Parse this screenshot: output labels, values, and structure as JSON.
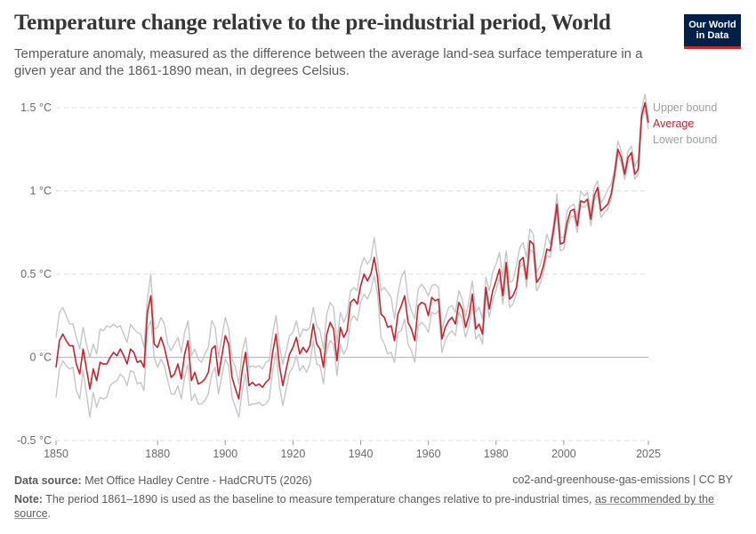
{
  "header": {
    "title": "Temperature change relative to the pre-industrial period, World",
    "subtitle": "Temperature anomaly, measured as the difference between the average land-sea surface temperature in a given year and the 1861-1890 mean, in degrees Celsius.",
    "logo_line1": "Our World",
    "logo_line2": "in Data"
  },
  "footer": {
    "source_label": "Data source:",
    "source_text": "Met Office Hadley Centre - HadCRUT5 (2026)",
    "slug": "co2-and-greenhouse-gas-emissions | CC BY",
    "note_label": "Note:",
    "note_text": "The period 1861–1890 is used as the baseline to measure temperature changes relative to pre-industrial times,",
    "note_link": "as recommended by the source",
    "note_end": "."
  },
  "colors": {
    "average": "#c8232d",
    "bounds": "#c6c6c6",
    "grid": "#dddddd",
    "zero": "#bdbdbd",
    "axis_text": "#6a6a6a"
  },
  "chart_data": {
    "type": "line",
    "xlabel": "",
    "ylabel": "",
    "xlim": [
      1850,
      2025
    ],
    "ylim": [
      -0.5,
      1.5
    ],
    "y_ticks": [
      {
        "v": -0.5,
        "label": "-0.5 °C"
      },
      {
        "v": 0,
        "label": "0 °C"
      },
      {
        "v": 0.5,
        "label": "0.5 °C"
      },
      {
        "v": 1,
        "label": "1 °C"
      },
      {
        "v": 1.5,
        "label": "1.5 °C"
      }
    ],
    "x_ticks": [
      {
        "v": 1850,
        "label": "1850"
      },
      {
        "v": 1880,
        "label": "1880"
      },
      {
        "v": 1900,
        "label": "1900"
      },
      {
        "v": 1920,
        "label": "1920"
      },
      {
        "v": 1940,
        "label": "1940"
      },
      {
        "v": 1960,
        "label": "1960"
      },
      {
        "v": 1980,
        "label": "1980"
      },
      {
        "v": 2000,
        "label": "2000"
      },
      {
        "v": 2025,
        "label": "2025"
      }
    ],
    "grid": true,
    "legend_placement": "right, inline at line ends",
    "series": [
      {
        "name": "Upper bound",
        "x": [
          1850,
          1851,
          1852,
          1853,
          1854,
          1855,
          1856,
          1857,
          1858,
          1859,
          1860,
          1861,
          1862,
          1863,
          1864,
          1865,
          1866,
          1867,
          1868,
          1869,
          1870,
          1871,
          1872,
          1873,
          1874,
          1875,
          1876,
          1877,
          1878,
          1879,
          1880,
          1881,
          1882,
          1883,
          1884,
          1885,
          1886,
          1887,
          1888,
          1889,
          1890,
          1891,
          1892,
          1893,
          1894,
          1895,
          1896,
          1897,
          1898,
          1899,
          1900,
          1901,
          1902,
          1903,
          1904,
          1905,
          1906,
          1907,
          1908,
          1909,
          1910,
          1911,
          1912,
          1913,
          1914,
          1915,
          1916,
          1917,
          1918,
          1919,
          1920,
          1921,
          1922,
          1923,
          1924,
          1925,
          1926,
          1927,
          1928,
          1929,
          1930,
          1931,
          1932,
          1933,
          1934,
          1935,
          1936,
          1937,
          1938,
          1939,
          1940,
          1941,
          1942,
          1943,
          1944,
          1945,
          1946,
          1947,
          1948,
          1949,
          1950,
          1951,
          1952,
          1953,
          1954,
          1955,
          1956,
          1957,
          1958,
          1959,
          1960,
          1961,
          1962,
          1963,
          1964,
          1965,
          1966,
          1967,
          1968,
          1969,
          1970,
          1971,
          1972,
          1973,
          1974,
          1975,
          1976,
          1977,
          1978,
          1979,
          1980,
          1981,
          1982,
          1983,
          1984,
          1985,
          1986,
          1987,
          1988,
          1989,
          1990,
          1991,
          1992,
          1993,
          1994,
          1995,
          1996,
          1997,
          1998,
          1999,
          2000,
          2001,
          2002,
          2003,
          2004,
          2005,
          2006,
          2007,
          2008,
          2009,
          2010,
          2011,
          2012,
          2013,
          2014,
          2015,
          2016,
          2017,
          2018,
          2019,
          2020,
          2021,
          2022,
          2023,
          2024,
          2025
        ],
        "values": [
          0.12,
          0.27,
          0.3,
          0.25,
          0.2,
          0.2,
          0.12,
          0.05,
          0.18,
          0.08,
          0.0,
          0.08,
          0.02,
          0.17,
          0.16,
          0.19,
          0.18,
          0.2,
          0.18,
          0.19,
          0.14,
          0.09,
          0.2,
          0.17,
          0.15,
          0.14,
          0.06,
          0.35,
          0.5,
          0.17,
          0.18,
          0.24,
          0.2,
          0.08,
          0.04,
          0.08,
          0.12,
          0.03,
          0.15,
          0.22,
          0.01,
          0.05,
          -0.01,
          -0.03,
          0.02,
          0.06,
          0.22,
          0.18,
          0.0,
          0.12,
          0.24,
          0.17,
          -0.01,
          -0.06,
          -0.16,
          0.03,
          0.12,
          -0.06,
          -0.05,
          -0.06,
          -0.05,
          -0.07,
          -0.03,
          -0.02,
          0.14,
          0.25,
          0.07,
          -0.04,
          0.04,
          0.13,
          0.15,
          0.22,
          0.12,
          0.17,
          0.16,
          0.18,
          0.3,
          0.19,
          0.16,
          0.05,
          0.26,
          0.33,
          0.3,
          0.09,
          0.27,
          0.21,
          0.26,
          0.4,
          0.42,
          0.4,
          0.54,
          0.6,
          0.56,
          0.59,
          0.72,
          0.57,
          0.4,
          0.42,
          0.39,
          0.36,
          0.23,
          0.38,
          0.48,
          0.52,
          0.35,
          0.28,
          0.23,
          0.41,
          0.44,
          0.41,
          0.37,
          0.43,
          0.44,
          0.42,
          0.16,
          0.24,
          0.3,
          0.31,
          0.27,
          0.4,
          0.35,
          0.24,
          0.34,
          0.46,
          0.27,
          0.3,
          0.23,
          0.48,
          0.4,
          0.51,
          0.56,
          0.63,
          0.48,
          0.64,
          0.45,
          0.46,
          0.55,
          0.66,
          0.69,
          0.6,
          0.77,
          0.74,
          0.51,
          0.55,
          0.62,
          0.74,
          0.68,
          0.8,
          0.98,
          0.72,
          0.72,
          0.88,
          0.91,
          0.92,
          0.84,
          1.0,
          0.97,
          0.99,
          0.87,
          1.02,
          1.06,
          0.93,
          0.96,
          1.01,
          1.04,
          1.13,
          1.3,
          1.24,
          1.12,
          1.24,
          1.27,
          1.15,
          1.19,
          1.49,
          1.58,
          1.44
        ]
      },
      {
        "name": "Average",
        "x": [
          1850,
          1851,
          1852,
          1853,
          1854,
          1855,
          1856,
          1857,
          1858,
          1859,
          1860,
          1861,
          1862,
          1863,
          1864,
          1865,
          1866,
          1867,
          1868,
          1869,
          1870,
          1871,
          1872,
          1873,
          1874,
          1875,
          1876,
          1877,
          1878,
          1879,
          1880,
          1881,
          1882,
          1883,
          1884,
          1885,
          1886,
          1887,
          1888,
          1889,
          1890,
          1891,
          1892,
          1893,
          1894,
          1895,
          1896,
          1897,
          1898,
          1899,
          1900,
          1901,
          1902,
          1903,
          1904,
          1905,
          1906,
          1907,
          1908,
          1909,
          1910,
          1911,
          1912,
          1913,
          1914,
          1915,
          1916,
          1917,
          1918,
          1919,
          1920,
          1921,
          1922,
          1923,
          1924,
          1925,
          1926,
          1927,
          1928,
          1929,
          1930,
          1931,
          1932,
          1933,
          1934,
          1935,
          1936,
          1937,
          1938,
          1939,
          1940,
          1941,
          1942,
          1943,
          1944,
          1945,
          1946,
          1947,
          1948,
          1949,
          1950,
          1951,
          1952,
          1953,
          1954,
          1955,
          1956,
          1957,
          1958,
          1959,
          1960,
          1961,
          1962,
          1963,
          1964,
          1965,
          1966,
          1967,
          1968,
          1969,
          1970,
          1971,
          1972,
          1973,
          1974,
          1975,
          1976,
          1977,
          1978,
          1979,
          1980,
          1981,
          1982,
          1983,
          1984,
          1985,
          1986,
          1987,
          1988,
          1989,
          1990,
          1991,
          1992,
          1993,
          1994,
          1995,
          1996,
          1997,
          1998,
          1999,
          2000,
          2001,
          2002,
          2003,
          2004,
          2005,
          2006,
          2007,
          2008,
          2009,
          2010,
          2011,
          2012,
          2013,
          2014,
          2015,
          2016,
          2017,
          2018,
          2019,
          2020,
          2021,
          2022,
          2023,
          2024,
          2025
        ],
        "values": [
          -0.06,
          0.1,
          0.14,
          0.1,
          0.07,
          0.07,
          -0.04,
          -0.1,
          0.05,
          -0.07,
          -0.19,
          -0.07,
          -0.14,
          -0.03,
          -0.04,
          -0.04,
          0.0,
          0.03,
          0.01,
          0.05,
          0.01,
          -0.04,
          0.05,
          0.03,
          -0.03,
          -0.02,
          -0.06,
          0.27,
          0.37,
          0.08,
          0.06,
          0.12,
          0.06,
          -0.03,
          -0.12,
          -0.1,
          -0.04,
          -0.13,
          0.02,
          0.1,
          -0.14,
          -0.09,
          -0.16,
          -0.15,
          -0.13,
          -0.09,
          0.05,
          0.07,
          -0.11,
          0.01,
          0.13,
          0.08,
          -0.12,
          -0.19,
          -0.25,
          -0.08,
          0.03,
          -0.17,
          -0.15,
          -0.17,
          -0.16,
          -0.18,
          -0.15,
          -0.13,
          0.03,
          0.14,
          -0.05,
          -0.17,
          -0.07,
          0.02,
          0.06,
          0.12,
          0.02,
          0.06,
          0.03,
          0.07,
          0.2,
          0.08,
          0.05,
          -0.06,
          0.14,
          0.21,
          0.17,
          -0.02,
          0.18,
          0.12,
          0.16,
          0.33,
          0.35,
          0.32,
          0.43,
          0.5,
          0.46,
          0.5,
          0.6,
          0.48,
          0.26,
          0.24,
          0.18,
          0.19,
          0.1,
          0.26,
          0.31,
          0.37,
          0.21,
          0.17,
          0.1,
          0.31,
          0.33,
          0.32,
          0.25,
          0.36,
          0.34,
          0.35,
          0.11,
          0.18,
          0.22,
          0.24,
          0.2,
          0.33,
          0.29,
          0.18,
          0.25,
          0.38,
          0.17,
          0.2,
          0.14,
          0.42,
          0.29,
          0.4,
          0.46,
          0.53,
          0.37,
          0.57,
          0.35,
          0.37,
          0.42,
          0.58,
          0.6,
          0.47,
          0.7,
          0.68,
          0.45,
          0.48,
          0.55,
          0.65,
          0.64,
          0.77,
          0.92,
          0.68,
          0.69,
          0.81,
          0.88,
          0.89,
          0.79,
          0.94,
          0.93,
          0.95,
          0.83,
          0.97,
          1.02,
          0.88,
          0.9,
          0.92,
          0.98,
          1.1,
          1.25,
          1.2,
          1.1,
          1.2,
          1.23,
          1.1,
          1.13,
          1.45,
          1.53,
          1.41
        ]
      },
      {
        "name": "Lower bound",
        "x": [
          1850,
          1851,
          1852,
          1853,
          1854,
          1855,
          1856,
          1857,
          1858,
          1859,
          1860,
          1861,
          1862,
          1863,
          1864,
          1865,
          1866,
          1867,
          1868,
          1869,
          1870,
          1871,
          1872,
          1873,
          1874,
          1875,
          1876,
          1877,
          1878,
          1879,
          1880,
          1881,
          1882,
          1883,
          1884,
          1885,
          1886,
          1887,
          1888,
          1889,
          1890,
          1891,
          1892,
          1893,
          1894,
          1895,
          1896,
          1897,
          1898,
          1899,
          1900,
          1901,
          1902,
          1903,
          1904,
          1905,
          1906,
          1907,
          1908,
          1909,
          1910,
          1911,
          1912,
          1913,
          1914,
          1915,
          1916,
          1917,
          1918,
          1919,
          1920,
          1921,
          1922,
          1923,
          1924,
          1925,
          1926,
          1927,
          1928,
          1929,
          1930,
          1931,
          1932,
          1933,
          1934,
          1935,
          1936,
          1937,
          1938,
          1939,
          1940,
          1941,
          1942,
          1943,
          1944,
          1945,
          1946,
          1947,
          1948,
          1949,
          1950,
          1951,
          1952,
          1953,
          1954,
          1955,
          1956,
          1957,
          1958,
          1959,
          1960,
          1961,
          1962,
          1963,
          1964,
          1965,
          1966,
          1967,
          1968,
          1969,
          1970,
          1971,
          1972,
          1973,
          1974,
          1975,
          1976,
          1977,
          1978,
          1979,
          1980,
          1981,
          1982,
          1983,
          1984,
          1985,
          1986,
          1987,
          1988,
          1989,
          1990,
          1991,
          1992,
          1993,
          1994,
          1995,
          1996,
          1997,
          1998,
          1999,
          2000,
          2001,
          2002,
          2003,
          2004,
          2005,
          2006,
          2007,
          2008,
          2009,
          2010,
          2011,
          2012,
          2013,
          2014,
          2015,
          2016,
          2017,
          2018,
          2019,
          2020,
          2021,
          2022,
          2023,
          2024,
          2025
        ],
        "values": [
          -0.24,
          -0.07,
          -0.02,
          -0.05,
          -0.07,
          -0.06,
          -0.2,
          -0.25,
          -0.08,
          -0.22,
          -0.36,
          -0.21,
          -0.3,
          -0.24,
          -0.25,
          -0.24,
          -0.17,
          -0.15,
          -0.14,
          -0.1,
          -0.12,
          -0.17,
          -0.08,
          -0.09,
          -0.16,
          -0.15,
          -0.2,
          0.17,
          0.22,
          0.0,
          -0.06,
          -0.01,
          -0.05,
          -0.14,
          -0.22,
          -0.22,
          -0.17,
          -0.25,
          -0.12,
          -0.04,
          -0.26,
          -0.22,
          -0.28,
          -0.28,
          -0.26,
          -0.22,
          -0.1,
          -0.06,
          -0.22,
          -0.11,
          -0.01,
          -0.05,
          -0.24,
          -0.3,
          -0.36,
          -0.2,
          -0.1,
          -0.29,
          -0.28,
          -0.28,
          -0.27,
          -0.29,
          -0.28,
          -0.25,
          -0.08,
          0.03,
          -0.17,
          -0.29,
          -0.19,
          -0.09,
          -0.06,
          0.01,
          -0.08,
          -0.05,
          -0.09,
          -0.04,
          0.1,
          -0.04,
          -0.05,
          -0.16,
          0.04,
          0.1,
          0.08,
          -0.11,
          0.08,
          0.02,
          0.06,
          0.22,
          0.25,
          0.22,
          0.33,
          0.38,
          0.35,
          0.4,
          0.49,
          0.38,
          0.12,
          0.08,
          0.02,
          0.03,
          -0.03,
          0.15,
          0.16,
          0.23,
          0.08,
          0.04,
          -0.03,
          0.19,
          0.21,
          0.19,
          0.15,
          0.27,
          0.26,
          0.28,
          0.03,
          0.1,
          0.14,
          0.16,
          0.13,
          0.27,
          0.23,
          0.12,
          0.19,
          0.31,
          0.11,
          0.14,
          0.08,
          0.37,
          0.24,
          0.35,
          0.4,
          0.48,
          0.32,
          0.52,
          0.3,
          0.32,
          0.38,
          0.54,
          0.56,
          0.42,
          0.65,
          0.63,
          0.4,
          0.44,
          0.51,
          0.61,
          0.6,
          0.73,
          0.88,
          0.64,
          0.65,
          0.78,
          0.84,
          0.85,
          0.75,
          0.91,
          0.9,
          0.92,
          0.79,
          0.94,
          0.98,
          0.84,
          0.87,
          0.89,
          0.95,
          1.07,
          1.22,
          1.17,
          1.07,
          1.17,
          1.2,
          1.07,
          1.1,
          1.42,
          1.49,
          1.37
        ]
      }
    ]
  }
}
